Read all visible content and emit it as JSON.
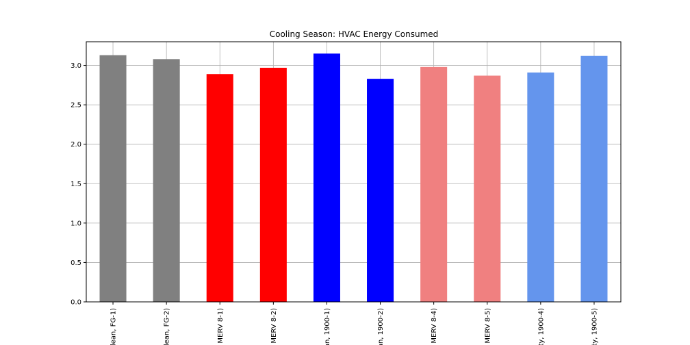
{
  "chart_data": {
    "type": "bar",
    "title": "Cooling Season: HVAC Energy Consumed",
    "xlabel": "",
    "ylabel": "",
    "categories": [
      "lean, FG-1)",
      "lean, FG-2)",
      "MERV 8-1)",
      "MERV 8-2)",
      "an, 1900-1)",
      "an, 1900-2)",
      "MERV 8-4)",
      "MERV 8-5)",
      "ty, 1900-4)",
      "ty, 1900-5)"
    ],
    "values": [
      3.13,
      3.08,
      2.89,
      2.97,
      3.15,
      2.83,
      2.98,
      2.87,
      2.91,
      3.12
    ],
    "bar_colors": [
      "#808080",
      "#808080",
      "#ff0000",
      "#ff0000",
      "#0000ff",
      "#0000ff",
      "#f08080",
      "#f08080",
      "#6495ed",
      "#6495ed"
    ],
    "ylim": [
      0,
      3.3
    ],
    "yticks": [
      0.0,
      0.5,
      1.0,
      1.5,
      2.0,
      2.5,
      3.0
    ],
    "ytick_labels": [
      "0.0",
      "0.5",
      "1.0",
      "1.5",
      "2.0",
      "2.5",
      "3.0"
    ],
    "grid": true,
    "legend": "none"
  }
}
